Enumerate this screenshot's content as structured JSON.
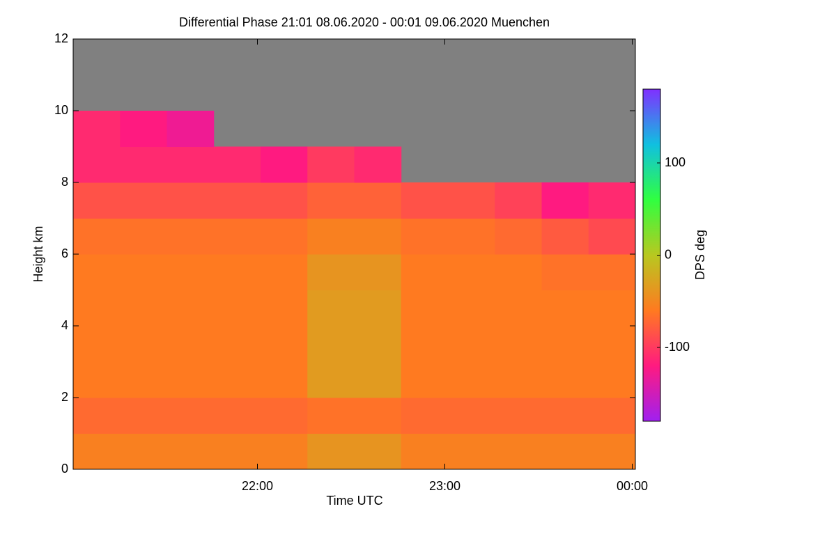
{
  "chart_data": {
    "type": "heatmap",
    "title": "Differential Phase   21:01 08.06.2020 - 00:01 09.06.2020 Muenchen",
    "x_label": "Time UTC",
    "y_label": "Height km",
    "colorbar_label": "DPS deg",
    "xlim": [
      21.0167,
      24.0167
    ],
    "xticks": [
      {
        "value": 22,
        "label": "22:00"
      },
      {
        "value": 23,
        "label": "23:00"
      },
      {
        "value": 24,
        "label": "00:00"
      }
    ],
    "ylim": [
      0,
      12
    ],
    "yticks": [
      0,
      2,
      4,
      6,
      8,
      10,
      12
    ],
    "zlim": [
      -180,
      180
    ],
    "zticks": [
      -100,
      0,
      100
    ],
    "colors": [
      "#a020f0",
      "#ff1a80",
      "#ff7a20",
      "#b8c820",
      "#30ff40",
      "#10c0e0",
      "#8030ff"
    ],
    "missing_color": "#808080",
    "xbins": [
      21.0167,
      21.2667,
      21.5167,
      21.7667,
      22.0167,
      22.2667,
      22.5167,
      22.7667,
      23.0167,
      23.2667,
      23.5167,
      23.7667,
      24.0167
    ],
    "ybins": [
      0,
      1,
      2,
      3,
      4,
      5,
      6,
      7,
      8,
      9,
      10,
      11,
      12
    ],
    "z": [
      [
        -55,
        -55,
        -55,
        -55,
        -55,
        -40,
        -40,
        -55,
        -55,
        -55,
        -55,
        -55
      ],
      [
        -70,
        -70,
        -70,
        -70,
        -70,
        -65,
        -65,
        -70,
        -70,
        -70,
        -70,
        -70
      ],
      [
        -60,
        -60,
        -60,
        -60,
        -60,
        -35,
        -35,
        -60,
        -60,
        -60,
        -60,
        -60
      ],
      [
        -60,
        -60,
        -60,
        -60,
        -60,
        -35,
        -35,
        -60,
        -60,
        -60,
        -60,
        -60
      ],
      [
        -60,
        -60,
        -60,
        -60,
        -60,
        -35,
        -35,
        -60,
        -60,
        -60,
        -60,
        -60
      ],
      [
        -60,
        -60,
        -60,
        -60,
        -60,
        -40,
        -40,
        -60,
        -60,
        -60,
        -65,
        -65
      ],
      [
        -65,
        -65,
        -65,
        -65,
        -65,
        -55,
        -55,
        -65,
        -65,
        -70,
        -80,
        -90
      ],
      [
        -85,
        -85,
        -85,
        -85,
        -85,
        -75,
        -75,
        -85,
        -85,
        -95,
        -120,
        -110
      ],
      [
        -110,
        -110,
        -110,
        -110,
        -120,
        -100,
        -110,
        null,
        null,
        null,
        null,
        null
      ],
      [
        -110,
        -120,
        -130,
        null,
        null,
        null,
        null,
        null,
        null,
        null,
        null,
        null
      ],
      [
        null,
        null,
        null,
        null,
        null,
        null,
        null,
        null,
        null,
        null,
        null,
        null
      ],
      [
        null,
        null,
        null,
        null,
        null,
        null,
        null,
        null,
        null,
        null,
        null,
        null
      ]
    ]
  }
}
